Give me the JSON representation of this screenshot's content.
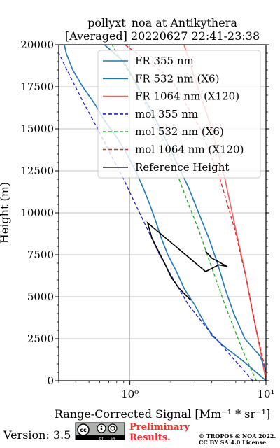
{
  "chart_data": {
    "type": "line",
    "title": "pollyxt_noa at Antikythera",
    "subtitle": "[Averaged] 20220627 22:41-23:38",
    "xlabel": "Range-Corrected Signal [Mm⁻¹ * sr⁻¹]",
    "ylabel": "Height (m)",
    "xscale": "log",
    "xlim": [
      0.3,
      10
    ],
    "ylim": [
      0,
      20000
    ],
    "grid": true,
    "legend_position": "upper-right",
    "x_ticks": [
      "10⁰",
      "10¹"
    ],
    "y_ticks": [
      "0",
      "2500",
      "5000",
      "7500",
      "10000",
      "12500",
      "15000",
      "17500",
      "20000"
    ],
    "series": [
      {
        "name": "FR 355 nm",
        "color": "#1f77b4",
        "style": "solid",
        "points": [
          [
            10,
            0
          ],
          [
            8.5,
            500
          ],
          [
            6.5,
            1300
          ],
          [
            5,
            2000
          ],
          [
            4,
            2700
          ],
          [
            3.5,
            3500
          ],
          [
            3,
            4500
          ],
          [
            2.5,
            5500
          ],
          [
            2.2,
            6500
          ],
          [
            1.9,
            7500
          ],
          [
            1.7,
            8500
          ],
          [
            1.55,
            9500
          ],
          [
            1.4,
            10500
          ],
          [
            1.25,
            11500
          ],
          [
            1.1,
            12500
          ],
          [
            0.95,
            13500
          ],
          [
            0.8,
            14500
          ],
          [
            0.65,
            15500
          ],
          [
            0.55,
            16500
          ],
          [
            0.45,
            17500
          ],
          [
            0.38,
            18500
          ],
          [
            0.34,
            19500
          ],
          [
            0.33,
            20000
          ]
        ]
      },
      {
        "name": "FR 532 nm (X6)",
        "color": "#1f77b4",
        "style": "solid",
        "points": [
          [
            10,
            600
          ],
          [
            9,
            1500
          ],
          [
            7,
            2500
          ],
          [
            5.8,
            4000
          ],
          [
            5,
            5500
          ],
          [
            4.4,
            7000
          ],
          [
            3.8,
            8500
          ],
          [
            3.2,
            10000
          ],
          [
            2.7,
            11500
          ],
          [
            2.2,
            13000
          ],
          [
            1.8,
            14500
          ],
          [
            1.45,
            16000
          ],
          [
            1.15,
            17500
          ],
          [
            0.9,
            19000
          ],
          [
            0.65,
            20000
          ]
        ]
      },
      {
        "name": "FR 1064 nm (X120)",
        "color": "#f26161",
        "style": "solid",
        "points": [
          [
            10,
            0
          ],
          [
            9,
            2000
          ],
          [
            8,
            4000
          ],
          [
            7,
            6500
          ],
          [
            6,
            9000
          ],
          [
            5,
            12000
          ],
          [
            4,
            15000
          ],
          [
            3,
            18000
          ],
          [
            2.5,
            20000
          ]
        ]
      },
      {
        "name": "mol 355 nm",
        "color": "#1f1fc8",
        "style": "dashed",
        "points": [
          [
            8,
            0
          ],
          [
            5.5,
            1500
          ],
          [
            3.8,
            3000
          ],
          [
            2.7,
            4500
          ],
          [
            2.1,
            6000
          ],
          [
            1.65,
            7500
          ],
          [
            1.35,
            9000
          ],
          [
            1.1,
            10500
          ],
          [
            0.9,
            12000
          ],
          [
            0.72,
            13500
          ],
          [
            0.58,
            15000
          ],
          [
            0.46,
            16500
          ],
          [
            0.37,
            18000
          ],
          [
            0.3,
            19500
          ]
        ]
      },
      {
        "name": "mol 532 nm (X6)",
        "color": "#22aa22",
        "style": "dashed",
        "points": [
          [
            8.5,
            0
          ],
          [
            7,
            1500
          ],
          [
            5.9,
            3000
          ],
          [
            5,
            4500
          ],
          [
            4.3,
            6000
          ],
          [
            3.7,
            7500
          ],
          [
            3.2,
            9000
          ],
          [
            2.7,
            10500
          ],
          [
            2.3,
            12000
          ],
          [
            1.95,
            13500
          ],
          [
            1.6,
            15000
          ],
          [
            1.3,
            16500
          ],
          [
            1.05,
            18000
          ],
          [
            0.8,
            19500
          ],
          [
            0.74,
            20000
          ]
        ]
      },
      {
        "name": "mol 1064 nm (X120)",
        "color": "#e32222",
        "style": "dashed",
        "points": [
          [
            10,
            500
          ],
          [
            8.5,
            3000
          ],
          [
            7.2,
            6000
          ],
          [
            5.9,
            9000
          ],
          [
            4.6,
            12000
          ],
          [
            3.3,
            15000
          ],
          [
            2,
            18000
          ],
          [
            0.92,
            20000
          ]
        ]
      },
      {
        "name": "Reference Height",
        "color": "#000000",
        "style": "solid",
        "points": [
          [
            2.8,
            4800
          ],
          [
            2.3,
            5500
          ],
          [
            2,
            6200
          ],
          [
            1.8,
            7000
          ],
          [
            1.6,
            7800
          ],
          [
            1.45,
            8500
          ],
          [
            1.35,
            9400
          ],
          [
            3.6,
            6500
          ],
          [
            4.5,
            6900
          ],
          [
            5.2,
            6800
          ],
          [
            4,
            7300
          ],
          [
            3.6,
            7700
          ]
        ]
      }
    ]
  },
  "footer": {
    "version": "Version: 3.5",
    "cc_badge": {
      "cc": "cc",
      "by": "BY",
      "sa": "SA"
    },
    "preliminary": [
      "Preliminary",
      "Results."
    ],
    "copyright": [
      "© TROPOS & NOA 2022.",
      "CC BY SA 4.0 License."
    ]
  }
}
